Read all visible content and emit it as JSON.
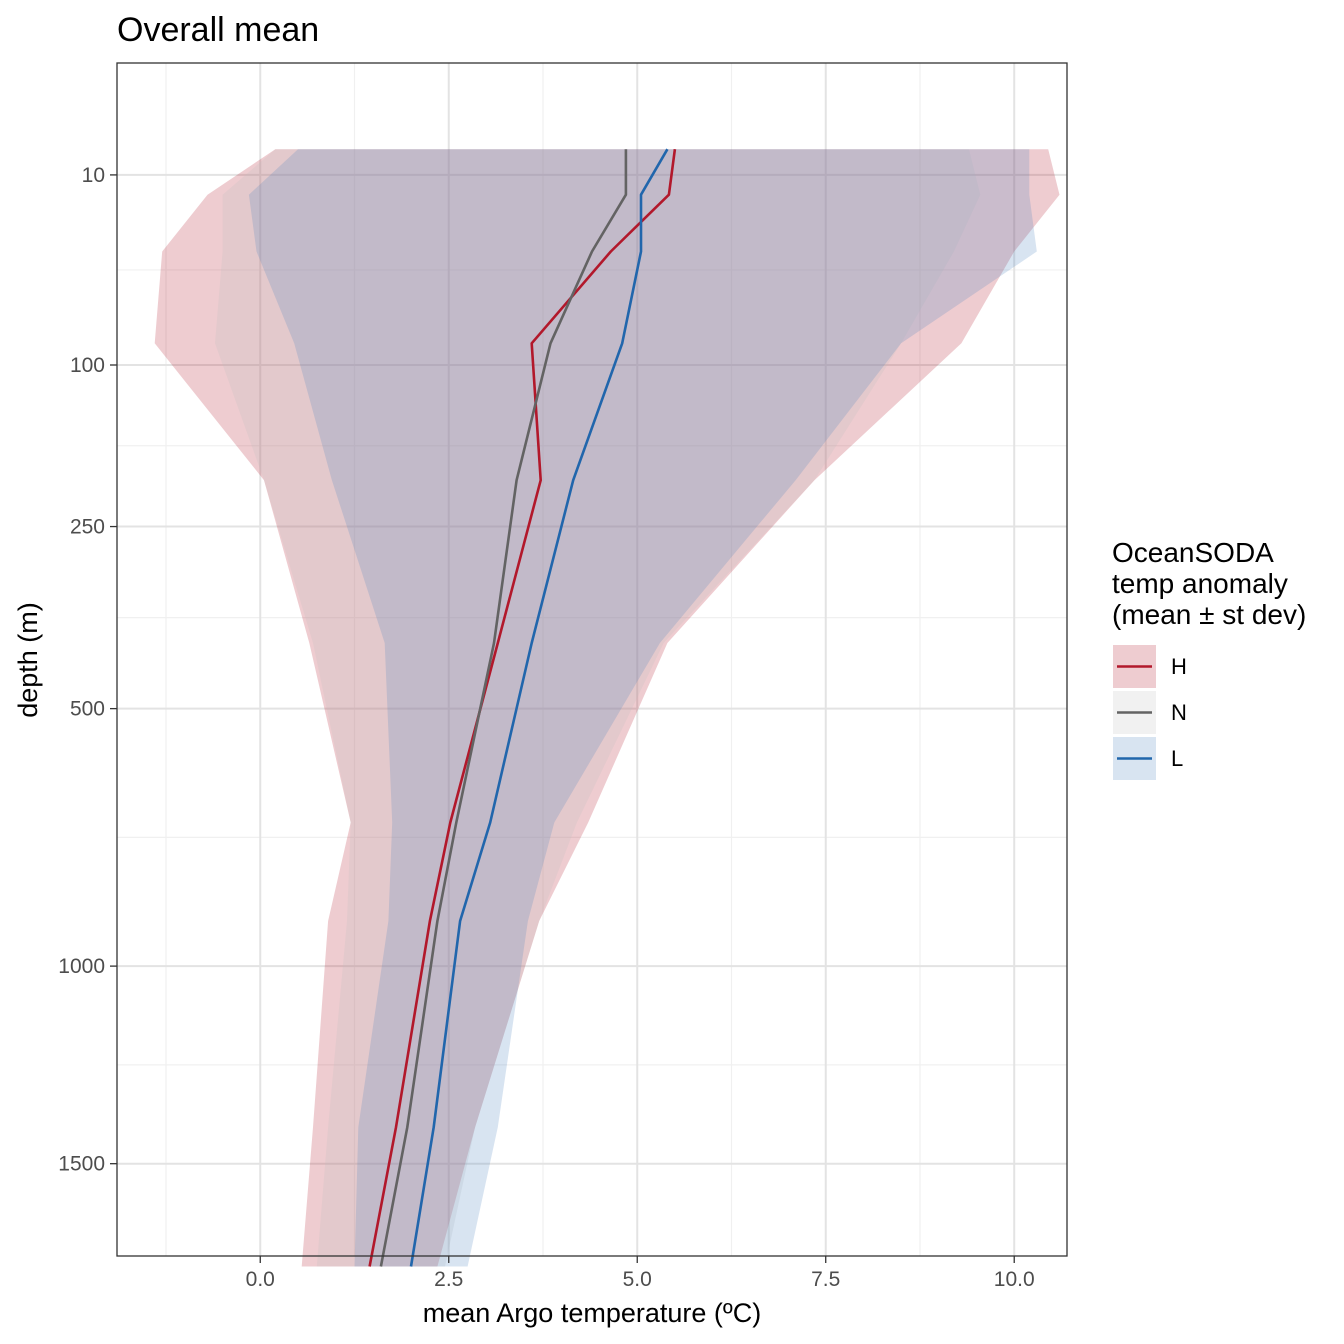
{
  "chart_data": {
    "type": "line",
    "title": "Overall mean",
    "xlabel": "mean Argo temperature (ºC)",
    "ylabel": "depth (m)",
    "xlim": [
      -1.9,
      10.7
    ],
    "y_scale": "sqrt",
    "ylim": [
      1800,
      0
    ],
    "x_ticks": [
      0.0,
      2.5,
      5.0,
      7.5,
      10.0
    ],
    "x_tick_labels": [
      "0.0",
      "2.5",
      "5.0",
      "7.5",
      "10.0"
    ],
    "y_ticks": [
      10,
      100,
      250,
      500,
      1000,
      1500
    ],
    "y_tick_labels": [
      "10",
      "100",
      "250",
      "500",
      "1000",
      "1500"
    ],
    "legend": {
      "title_lines": [
        "OceanSODA",
        "temp anomaly",
        "(mean ± st dev)"
      ],
      "position": "right"
    },
    "series": [
      {
        "name": "H",
        "color": "#b2182b",
        "fill": "#b2182b",
        "depth": [
          5,
          15,
          35,
          85,
          200,
          400,
          700,
          900,
          1400,
          1800
        ],
        "mean": [
          5.5,
          5.42,
          4.65,
          3.6,
          3.72,
          3.15,
          2.52,
          2.25,
          1.8,
          1.45
        ],
        "lower": [
          0.2,
          -0.7,
          -1.3,
          -1.4,
          0.05,
          0.65,
          1.2,
          0.9,
          0.7,
          0.55
        ],
        "upper": [
          10.45,
          10.6,
          10.0,
          9.3,
          7.35,
          5.4,
          4.35,
          3.7,
          2.85,
          2.35
        ]
      },
      {
        "name": "N",
        "color": "#636363",
        "fill": "#bdbdbd",
        "depth": [
          5,
          15,
          35,
          85,
          200,
          400,
          700,
          900,
          1400,
          1800
        ],
        "mean": [
          4.85,
          4.85,
          4.4,
          3.85,
          3.4,
          3.1,
          2.6,
          2.35,
          1.95,
          1.6
        ],
        "lower": [
          0.2,
          -0.5,
          -0.5,
          -0.6,
          0.05,
          0.7,
          1.2,
          1.15,
          0.9,
          0.75
        ],
        "upper": [
          9.4,
          9.55,
          9.2,
          8.5,
          7.35,
          5.35,
          4.2,
          3.7,
          2.85,
          2.45
        ]
      },
      {
        "name": "L",
        "color": "#2166ac",
        "fill": "#4f86bd",
        "depth": [
          5,
          15,
          35,
          85,
          200,
          400,
          700,
          900,
          1400,
          1800
        ],
        "mean": [
          5.4,
          5.05,
          5.05,
          4.8,
          4.15,
          3.6,
          3.05,
          2.65,
          2.3,
          2.0
        ],
        "lower": [
          0.5,
          -0.15,
          -0.05,
          0.45,
          0.95,
          1.65,
          1.75,
          1.7,
          1.3,
          1.25
        ],
        "upper": [
          10.2,
          10.2,
          10.3,
          8.5,
          7.1,
          5.3,
          3.9,
          3.55,
          3.15,
          2.75
        ]
      }
    ]
  }
}
